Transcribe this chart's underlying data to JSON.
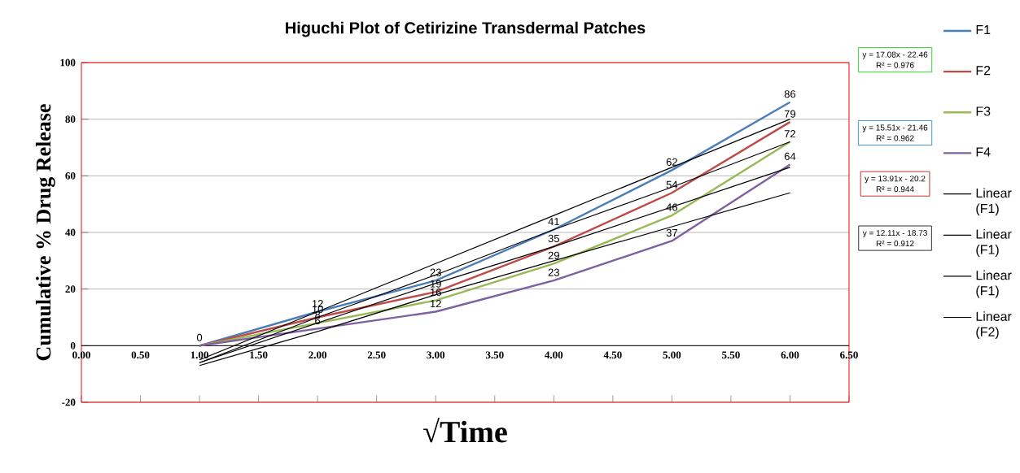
{
  "chart_data": {
    "type": "line",
    "title": "Higuchi Plot of Cetirizine Transdermal Patches",
    "xlabel": "√Time",
    "ylabel": "Cumulative % Drug Release",
    "x": [
      1,
      2,
      3,
      4,
      5,
      6
    ],
    "series": [
      {
        "name": "F1",
        "color": "#4a7ebb",
        "values": [
          0,
          12,
          23,
          41,
          62,
          86
        ],
        "value_labels": [
          "0",
          "12",
          "23",
          "41",
          "62",
          "86"
        ]
      },
      {
        "name": "F2",
        "color": "#be4b48",
        "values": [
          0,
          10,
          19,
          35,
          54,
          79
        ],
        "value_labels": [
          null,
          "10",
          "19",
          "35",
          "54",
          "79"
        ]
      },
      {
        "name": "F3",
        "color": "#98b954",
        "values": [
          0,
          8,
          16,
          29,
          46,
          72
        ],
        "value_labels": [
          null,
          "8",
          "16",
          "29",
          "46",
          "72"
        ]
      },
      {
        "name": "F4",
        "color": "#7d60a0",
        "values": [
          0,
          6,
          12,
          23,
          37,
          64
        ],
        "value_labels": [
          null,
          "6",
          "12",
          "23",
          "37",
          "64"
        ]
      },
      {
        "name": "Linear (F1)",
        "color": "#000000",
        "values": [
          -5,
          12,
          29,
          46,
          63,
          80
        ]
      },
      {
        "name": "Linear (F1)",
        "color": "#000000",
        "values": [
          -6,
          10,
          25,
          41,
          56,
          72
        ]
      },
      {
        "name": "Linear (F1)",
        "color": "#000000",
        "values": [
          -6,
          8,
          22,
          35,
          49,
          63
        ]
      },
      {
        "name": "Linear (F2)",
        "color": "#000000",
        "values": [
          -7,
          5,
          18,
          30,
          42,
          54
        ]
      }
    ],
    "xlim": [
      0,
      6.5
    ],
    "ylim": [
      -20,
      100
    ],
    "xticks": [
      {
        "value": 0,
        "label": "0.00"
      },
      {
        "value": 0.5,
        "label": "0.50"
      },
      {
        "value": 1,
        "label": "1.00"
      },
      {
        "value": 1.5,
        "label": "1.50"
      },
      {
        "value": 2,
        "label": "2.00"
      },
      {
        "value": 2.5,
        "label": "2.50"
      },
      {
        "value": 3,
        "label": "3.00"
      },
      {
        "value": 3.5,
        "label": "3.50"
      },
      {
        "value": 4,
        "label": "4.00"
      },
      {
        "value": 4.5,
        "label": "4.50"
      },
      {
        "value": 5,
        "label": "5.00"
      },
      {
        "value": 5.5,
        "label": "5.50"
      },
      {
        "value": 6,
        "label": "6.00"
      },
      {
        "value": 6.5,
        "label": "6.50"
      }
    ],
    "yticks": [
      -20,
      0,
      20,
      40,
      60,
      80,
      100
    ],
    "grid": "y",
    "legend": "right",
    "marker": "none",
    "line_style": "solid",
    "annotations": [
      "y = 17.08x - 22.46",
      "R² = 0.976",
      "y = 15.51x - 21.46",
      "R² = 0.962",
      "y = 13.91x - 20.2",
      "R² = 0.944",
      "y = 12.11x - 18.73",
      "R² = 0.912"
    ]
  }
}
